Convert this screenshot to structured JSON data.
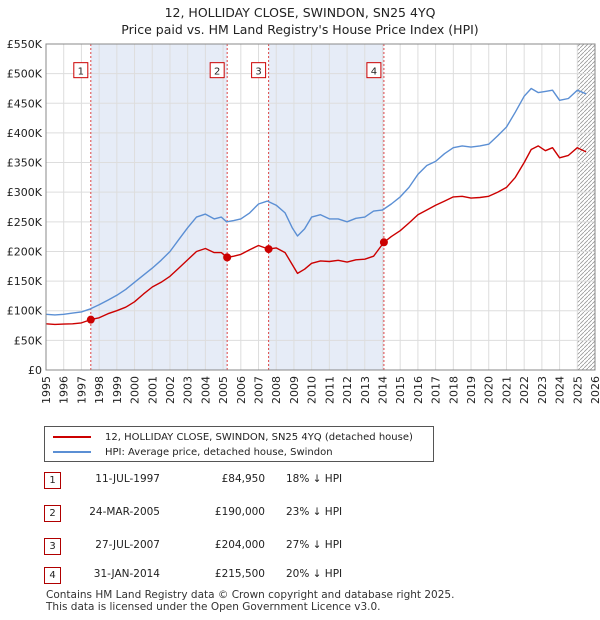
{
  "title": {
    "line1": "12, HOLLIDAY CLOSE, SWINDON, SN25 4YQ",
    "line2": "Price paid vs. HM Land Registry's House Price Index (HPI)"
  },
  "colors": {
    "price": "#cc0000",
    "hpi": "#5b8fd4",
    "band": "#e6ecf7",
    "marker_border": "#cc0000"
  },
  "chart_data": {
    "type": "line",
    "xlim": [
      1995,
      2026
    ],
    "ylim": [
      0,
      550000
    ],
    "yticks": [
      0,
      50000,
      100000,
      150000,
      200000,
      250000,
      300000,
      350000,
      400000,
      450000,
      500000,
      550000
    ],
    "ytick_labels": [
      "£0",
      "£50K",
      "£100K",
      "£150K",
      "£200K",
      "£250K",
      "£300K",
      "£350K",
      "£400K",
      "£450K",
      "£500K",
      "£550K"
    ],
    "xtick_labels": [
      "1995",
      "1996",
      "1997",
      "1998",
      "1999",
      "2000",
      "2001",
      "2002",
      "2003",
      "2004",
      "2005",
      "2006",
      "2007",
      "2008",
      "2009",
      "2010",
      "2011",
      "2012",
      "2013",
      "2014",
      "2015",
      "2016",
      "2017",
      "2018",
      "2019",
      "2020",
      "2021",
      "2022",
      "2023",
      "2024",
      "2025",
      "2026"
    ],
    "shaded_ranges": [
      [
        1997.53,
        2005.23
      ],
      [
        2007.57,
        2014.08
      ]
    ],
    "hatch_from": 2025.0,
    "series": [
      {
        "name": "12, HOLLIDAY CLOSE, SWINDON, SN25 4YQ (detached house)",
        "color": "#cc0000",
        "x": [
          1995.0,
          1995.5,
          1996.0,
          1996.5,
          1997.0,
          1997.53,
          1998.0,
          1998.5,
          1999.0,
          1999.5,
          2000.0,
          2000.5,
          2001.0,
          2001.5,
          2002.0,
          2002.5,
          2003.0,
          2003.5,
          2004.0,
          2004.5,
          2004.9,
          2005.23,
          2005.6,
          2006.0,
          2006.5,
          2007.0,
          2007.57,
          2008.0,
          2008.5,
          2008.9,
          2009.2,
          2009.6,
          2010.0,
          2010.5,
          2011.0,
          2011.5,
          2012.0,
          2012.5,
          2013.0,
          2013.5,
          2014.08,
          2014.5,
          2015.0,
          2015.5,
          2016.0,
          2016.5,
          2017.0,
          2017.5,
          2018.0,
          2018.5,
          2019.0,
          2019.5,
          2020.0,
          2020.5,
          2021.0,
          2021.5,
          2022.0,
          2022.4,
          2022.8,
          2023.2,
          2023.6,
          2024.0,
          2024.5,
          2025.0,
          2025.5
        ],
        "y": [
          78000,
          77000,
          77500,
          78000,
          79500,
          84950,
          88000,
          95000,
          100000,
          106000,
          115000,
          128000,
          140000,
          148000,
          158000,
          172000,
          186000,
          200000,
          205000,
          198000,
          198000,
          190000,
          192000,
          195000,
          203000,
          210000,
          204000,
          206000,
          198000,
          178000,
          163000,
          170000,
          180000,
          184000,
          183000,
          185000,
          182000,
          186000,
          187000,
          192000,
          215500,
          225000,
          235000,
          248000,
          262000,
          270000,
          278000,
          285000,
          292000,
          293000,
          290000,
          291000,
          293000,
          300000,
          308000,
          325000,
          350000,
          372000,
          378000,
          370000,
          375000,
          358000,
          362000,
          375000,
          368000
        ]
      },
      {
        "name": "HPI: Average price, detached house, Swindon",
        "color": "#5b8fd4",
        "x": [
          1995.0,
          1995.5,
          1996.0,
          1996.5,
          1997.0,
          1997.5,
          1998.0,
          1998.5,
          1999.0,
          1999.5,
          2000.0,
          2000.5,
          2001.0,
          2001.5,
          2002.0,
          2002.5,
          2003.0,
          2003.5,
          2004.0,
          2004.5,
          2004.9,
          2005.2,
          2005.6,
          2006.0,
          2006.5,
          2007.0,
          2007.5,
          2008.0,
          2008.5,
          2008.9,
          2009.2,
          2009.6,
          2010.0,
          2010.5,
          2011.0,
          2011.5,
          2012.0,
          2012.5,
          2013.0,
          2013.5,
          2014.0,
          2014.5,
          2015.0,
          2015.5,
          2016.0,
          2016.5,
          2017.0,
          2017.5,
          2018.0,
          2018.5,
          2019.0,
          2019.5,
          2020.0,
          2020.5,
          2021.0,
          2021.5,
          2022.0,
          2022.4,
          2022.8,
          2023.2,
          2023.6,
          2024.0,
          2024.5,
          2025.0,
          2025.5
        ],
        "y": [
          94000,
          93000,
          94000,
          96000,
          98000,
          103000,
          110000,
          118000,
          126000,
          136000,
          148000,
          160000,
          172000,
          185000,
          200000,
          220000,
          240000,
          258000,
          263000,
          255000,
          258000,
          250000,
          252000,
          255000,
          265000,
          280000,
          285000,
          278000,
          265000,
          240000,
          226000,
          238000,
          258000,
          262000,
          255000,
          255000,
          250000,
          256000,
          258000,
          268000,
          270000,
          280000,
          292000,
          308000,
          330000,
          345000,
          352000,
          365000,
          375000,
          378000,
          376000,
          378000,
          381000,
          395000,
          410000,
          435000,
          462000,
          475000,
          468000,
          470000,
          472000,
          455000,
          458000,
          472000,
          466000
        ]
      }
    ],
    "sales": [
      {
        "label": "1",
        "date": 1997.53,
        "price": 84950
      },
      {
        "label": "2",
        "date": 2005.23,
        "price": 190000
      },
      {
        "label": "3",
        "date": 2007.57,
        "price": 204000
      },
      {
        "label": "4",
        "date": 2014.08,
        "price": 215500
      }
    ],
    "marker_label_level": 505000
  },
  "legend": {
    "items": [
      {
        "label": "12, HOLLIDAY CLOSE, SWINDON, SN25 4YQ (detached house)"
      },
      {
        "label": "HPI: Average price, detached house, Swindon"
      }
    ]
  },
  "sales_table": [
    {
      "num": "1",
      "date": "11-JUL-1997",
      "price": "£84,950",
      "hpi": "18% ↓ HPI"
    },
    {
      "num": "2",
      "date": "24-MAR-2005",
      "price": "£190,000",
      "hpi": "23% ↓ HPI"
    },
    {
      "num": "3",
      "date": "27-JUL-2007",
      "price": "£204,000",
      "hpi": "27% ↓ HPI"
    },
    {
      "num": "4",
      "date": "31-JAN-2014",
      "price": "£215,500",
      "hpi": "20% ↓ HPI"
    }
  ],
  "footer": {
    "line1": "Contains HM Land Registry data © Crown copyright and database right 2025.",
    "line2": "This data is licensed under the Open Government Licence v3.0."
  }
}
